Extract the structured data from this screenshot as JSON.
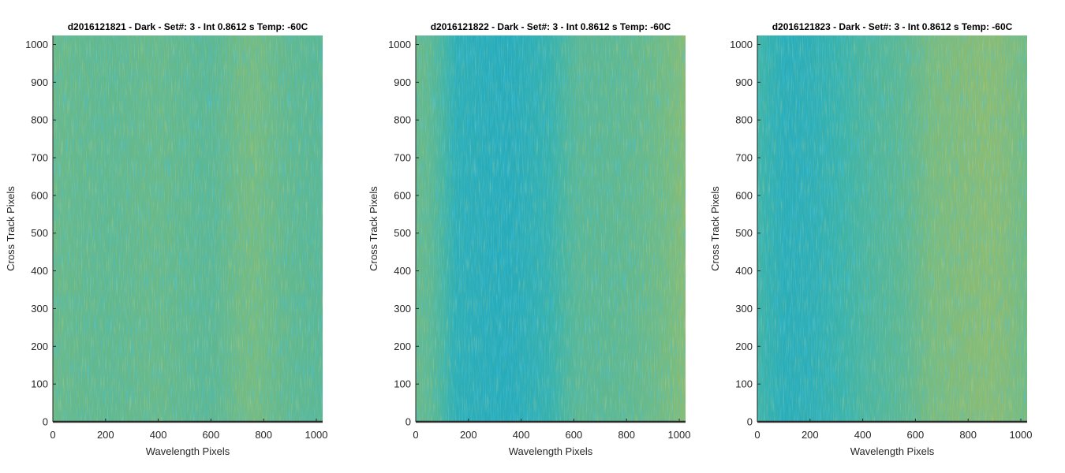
{
  "chart_data": [
    {
      "type": "heatmap",
      "title": "d2016121821 - Dark - Set#: 3 - Int 0.8612 s Temp: -60C",
      "xlabel": "Wavelength Pixels",
      "ylabel": "Cross Track Pixels",
      "xlim": [
        0,
        1024
      ],
      "ylim": [
        0,
        1024
      ],
      "xticks": [
        "0",
        "200",
        "400",
        "600",
        "800",
        "1000"
      ],
      "yticks": [
        "0",
        "100",
        "200",
        "300",
        "400",
        "500",
        "600",
        "700",
        "800",
        "900",
        "1000"
      ],
      "column_profile": [
        {
          "x": 0,
          "level": 0.55
        },
        {
          "x": 200,
          "level": 0.52
        },
        {
          "x": 400,
          "level": 0.55
        },
        {
          "x": 600,
          "level": 0.5
        },
        {
          "x": 750,
          "level": 0.6
        },
        {
          "x": 900,
          "level": 0.52
        },
        {
          "x": 1024,
          "level": 0.5
        }
      ]
    },
    {
      "type": "heatmap",
      "title": "d2016121822 - Dark - Set#: 3 - Int 0.8612 s Temp: -60C",
      "xlabel": "Wavelength Pixels",
      "ylabel": "Cross Track Pixels",
      "xlim": [
        0,
        1024
      ],
      "ylim": [
        0,
        1024
      ],
      "xticks": [
        "0",
        "200",
        "400",
        "600",
        "800",
        "1000"
      ],
      "yticks": [
        "0",
        "100",
        "200",
        "300",
        "400",
        "500",
        "600",
        "700",
        "800",
        "900",
        "1000"
      ],
      "column_profile": [
        {
          "x": 0,
          "level": 0.55
        },
        {
          "x": 80,
          "level": 0.5
        },
        {
          "x": 150,
          "level": 0.32
        },
        {
          "x": 350,
          "level": 0.28
        },
        {
          "x": 500,
          "level": 0.36
        },
        {
          "x": 600,
          "level": 0.5
        },
        {
          "x": 800,
          "level": 0.52
        },
        {
          "x": 950,
          "level": 0.58
        },
        {
          "x": 1024,
          "level": 0.65
        }
      ]
    },
    {
      "type": "heatmap",
      "title": "d2016121823 - Dark - Set#: 3 - Int 0.8612 s Temp: -60C",
      "xlabel": "Wavelength Pixels",
      "ylabel": "Cross Track Pixels",
      "xlim": [
        0,
        1024
      ],
      "ylim": [
        0,
        1024
      ],
      "xticks": [
        "0",
        "200",
        "400",
        "600",
        "800",
        "1000"
      ],
      "yticks": [
        "0",
        "100",
        "200",
        "300",
        "400",
        "500",
        "600",
        "700",
        "800",
        "900",
        "1000"
      ],
      "column_profile": [
        {
          "x": 0,
          "level": 0.42
        },
        {
          "x": 100,
          "level": 0.3
        },
        {
          "x": 200,
          "level": 0.32
        },
        {
          "x": 400,
          "level": 0.45
        },
        {
          "x": 580,
          "level": 0.52
        },
        {
          "x": 650,
          "level": 0.6
        },
        {
          "x": 800,
          "level": 0.64
        },
        {
          "x": 900,
          "level": 0.66
        },
        {
          "x": 1024,
          "level": 0.58
        }
      ]
    }
  ],
  "colors": {
    "colormap": [
      "#0e90d5",
      "#1aa6c6",
      "#3cb3a8",
      "#7bbb7c",
      "#b6bd58",
      "#d2b84a"
    ],
    "axis": "#262626",
    "baseline": "#2b2b2b"
  }
}
